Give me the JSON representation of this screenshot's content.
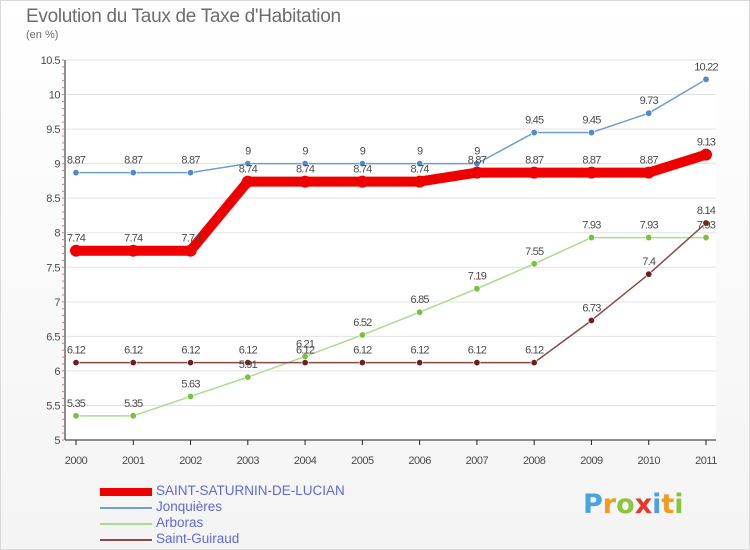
{
  "title": "Evolution du Taux de Taxe d'Habitation",
  "subtitle": "(en %)",
  "logo": {
    "text": "Proxiti",
    "letters": [
      {
        "ch": "P",
        "color": "#4aa3df"
      },
      {
        "ch": "r",
        "color": "#f29b1c"
      },
      {
        "ch": "o",
        "color": "#8cc43f"
      },
      {
        "ch": "x",
        "color": "#e8362b"
      },
      {
        "ch": "i",
        "color": "#4aa3df"
      },
      {
        "ch": "t",
        "color": "#f29b1c"
      },
      {
        "ch": "i",
        "color": "#8cc43f"
      }
    ]
  },
  "chart_data": {
    "type": "line",
    "title": "Evolution du Taux de Taxe d'Habitation",
    "ylabel": "(en %)",
    "xlabel": "",
    "ylim": [
      5,
      10.5
    ],
    "yticks": [
      "5",
      "5.5",
      "6",
      "6.5",
      "7",
      "7.5",
      "8",
      "8.5",
      "9",
      "9.5",
      "10",
      "10.5"
    ],
    "categories": [
      "2000",
      "2001",
      "2002",
      "2003",
      "2004",
      "2005",
      "2006",
      "2007",
      "2008",
      "2009",
      "2010",
      "2011"
    ],
    "series": [
      {
        "name": "Jonquières",
        "color": "#6d9fcf",
        "marker": "#4f8bc9",
        "thick": false,
        "values": [
          8.87,
          8.87,
          8.87,
          9,
          9,
          9,
          9,
          9,
          9.45,
          9.45,
          9.73,
          10.22
        ],
        "labels": [
          "8.87",
          "8.87",
          "8.87",
          "9",
          "9",
          "9",
          "9",
          "9",
          "9.45",
          "9.45",
          "9.73",
          "10.22"
        ]
      },
      {
        "name": "Arboras",
        "color": "#a9dc8c",
        "marker": "#7bc043",
        "thick": false,
        "values": [
          5.35,
          5.35,
          5.63,
          5.91,
          6.21,
          6.52,
          6.85,
          7.19,
          7.55,
          7.93,
          7.93,
          7.93
        ],
        "labels": [
          "5.35",
          "5.35",
          "5.63",
          "5.91",
          "6.21",
          "6.52",
          "6.85",
          "7.19",
          "7.55",
          "7.93",
          "7.93",
          "7.93"
        ]
      },
      {
        "name": "Saint-Guiraud",
        "color": "#8a4a4a",
        "marker": "#6b1f1f",
        "thick": false,
        "values": [
          6.12,
          6.12,
          6.12,
          6.12,
          6.12,
          6.12,
          6.12,
          6.12,
          6.12,
          6.73,
          7.4,
          8.14
        ],
        "labels": [
          "6.12",
          "6.12",
          "6.12",
          "6.12",
          "6.12",
          "6.12",
          "6.12",
          "6.12",
          "6.12",
          "6.73",
          "7.4",
          "8.14"
        ]
      },
      {
        "name": "SAINT-SATURNIN-DE-LUCIAN",
        "color": "#ee0000",
        "marker": "#ee0000",
        "thick": true,
        "values": [
          7.74,
          7.74,
          7.74,
          8.74,
          8.74,
          8.74,
          8.74,
          8.87,
          8.87,
          8.87,
          8.87,
          9.13
        ],
        "labels": [
          "7.74",
          "7.74",
          "7.74",
          "8.74",
          "8.74",
          "8.74",
          "8.74",
          "8.87",
          "8.87",
          "8.87",
          "8.87",
          "9.13"
        ]
      }
    ],
    "legend_order": [
      "SAINT-SATURNIN-DE-LUCIAN",
      "Jonquières",
      "Arboras",
      "Saint-Guiraud"
    ],
    "legend_position": "bottom-left"
  }
}
